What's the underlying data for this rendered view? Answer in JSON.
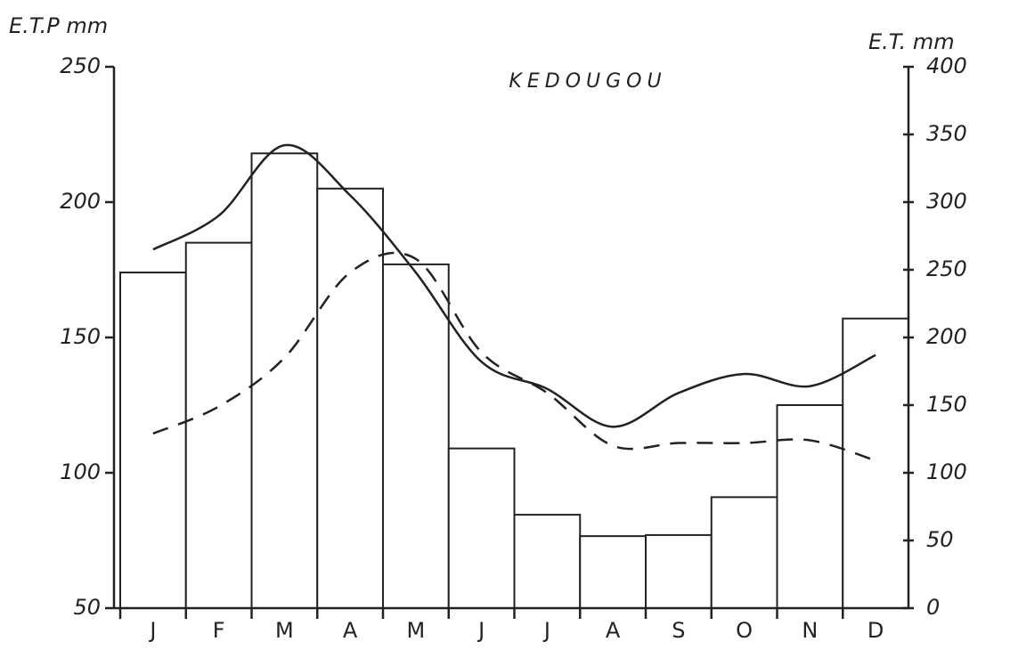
{
  "chart_data": {
    "type": "bar_line",
    "title": "KEDOUGOU",
    "y_label": "E.T.P mm",
    "y2_label": "E.T. mm",
    "categories": [
      "J",
      "F",
      "M",
      "A",
      "M",
      "J",
      "J",
      "A",
      "S",
      "O",
      "N",
      "D"
    ],
    "ylim": [
      50,
      250
    ],
    "yticks": [
      50,
      100,
      150,
      200,
      250
    ],
    "y2lim": [
      0,
      400
    ],
    "y2ticks": [
      0,
      50,
      100,
      150,
      200,
      250,
      300,
      350,
      400
    ],
    "series": [
      {
        "type": "bar",
        "color": "#222222",
        "values": [
          174,
          185,
          218,
          205,
          177,
          109,
          84.5,
          76.6,
          77,
          91,
          125,
          157
        ]
      },
      {
        "type": "line",
        "axis": "y2",
        "style": "solid",
        "color": "#222222",
        "values": [
          265,
          290,
          342,
          305,
          248,
          182,
          162,
          134,
          159,
          173,
          164,
          187
        ]
      },
      {
        "type": "line",
        "axis": "y2",
        "style": "dashed",
        "color": "#222222",
        "values": [
          129,
          149,
          185,
          248,
          258,
          189,
          159,
          120,
          122,
          122,
          124,
          109
        ]
      }
    ]
  }
}
